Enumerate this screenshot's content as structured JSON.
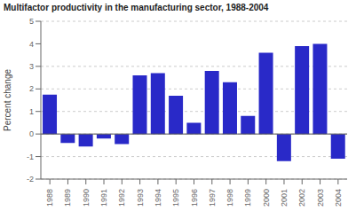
{
  "chart_data": {
    "type": "bar",
    "title": "Multifactor productivity in the manufacturing sector, 1988-2004",
    "ylabel": "Percent change",
    "categories": [
      "1988",
      "1989",
      "1990",
      "1991",
      "1992",
      "1993",
      "1994",
      "1995",
      "1996",
      "1997",
      "1998",
      "1999",
      "2000",
      "2001",
      "2002",
      "2003",
      "2004"
    ],
    "values": [
      1.75,
      -0.4,
      -0.55,
      -0.2,
      -0.45,
      2.6,
      2.7,
      1.7,
      0.5,
      2.8,
      2.3,
      0.8,
      3.6,
      -1.2,
      3.9,
      4.0,
      -1.1
    ],
    "color": "#2929c8",
    "ylim": [
      -2,
      5
    ],
    "yticks": [
      -2,
      -1,
      0,
      1,
      2,
      3,
      4,
      5
    ],
    "grid": true
  }
}
